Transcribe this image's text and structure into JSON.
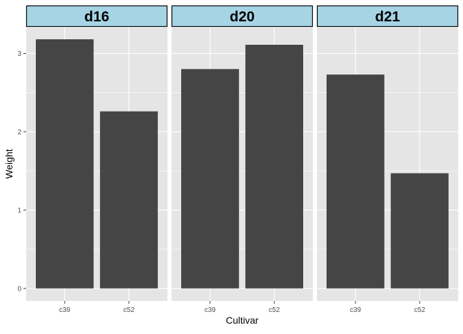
{
  "chart_data": {
    "type": "bar",
    "facets": [
      "d16",
      "d20",
      "d21"
    ],
    "categories": [
      "c39",
      "c52"
    ],
    "series": [
      {
        "facet": "d16",
        "values": [
          3.18,
          2.26
        ]
      },
      {
        "facet": "d20",
        "values": [
          2.8,
          3.11
        ]
      },
      {
        "facet": "d21",
        "values": [
          2.73,
          1.47
        ]
      }
    ],
    "xlabel": "Cultivar",
    "ylabel": "Weight",
    "ylim": [
      -0.16,
      3.33
    ],
    "yticks": [
      0,
      1,
      2,
      3
    ],
    "grid": true,
    "colors": {
      "panel_bg": "#e5e5e5",
      "grid": "#ffffff",
      "bar": "#454545",
      "strip_bg": "#a6d4e4",
      "strip_border": "#000000",
      "text": "#4d4d4d",
      "title_text": "#000000"
    }
  }
}
